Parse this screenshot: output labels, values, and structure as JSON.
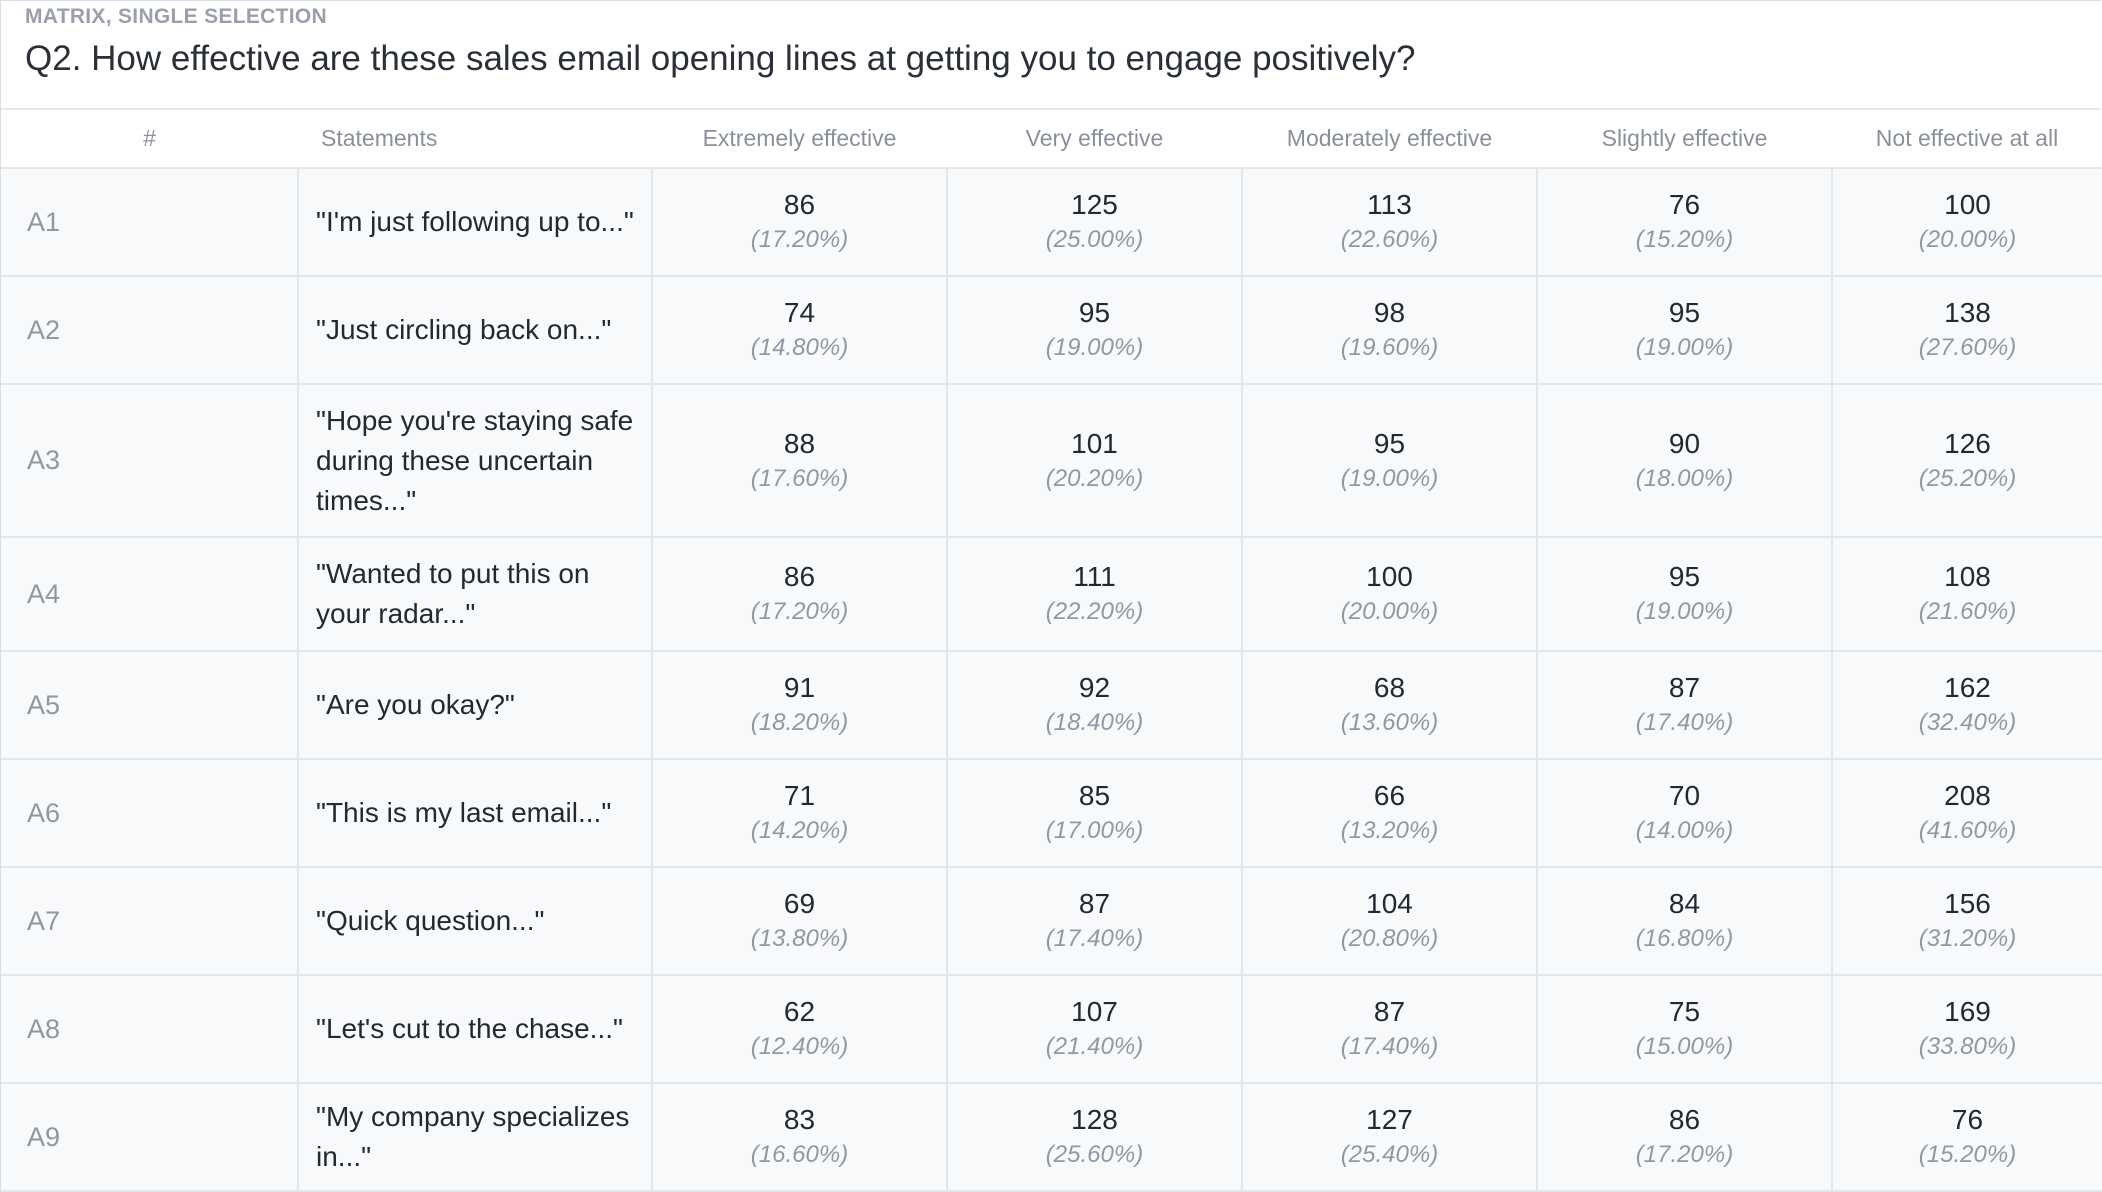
{
  "question": {
    "type_label": "MATRIX, SINGLE SELECTION",
    "title": "Q2. How effective are these sales email opening lines at getting you to engage positively?"
  },
  "table": {
    "columns": [
      "#",
      "Statements",
      "Extremely effective",
      "Very effective",
      "Moderately effective",
      "Slightly effective",
      "Not effective at all"
    ],
    "rows": [
      {
        "id": "A1",
        "statement": "\"I'm just following up to...\"",
        "cells": [
          {
            "count": "86",
            "pct": "(17.20%)"
          },
          {
            "count": "125",
            "pct": "(25.00%)"
          },
          {
            "count": "113",
            "pct": "(22.60%)"
          },
          {
            "count": "76",
            "pct": "(15.20%)"
          },
          {
            "count": "100",
            "pct": "(20.00%)"
          }
        ]
      },
      {
        "id": "A2",
        "statement": "\"Just circling back on...\"",
        "cells": [
          {
            "count": "74",
            "pct": "(14.80%)"
          },
          {
            "count": "95",
            "pct": "(19.00%)"
          },
          {
            "count": "98",
            "pct": "(19.60%)"
          },
          {
            "count": "95",
            "pct": "(19.00%)"
          },
          {
            "count": "138",
            "pct": "(27.60%)"
          }
        ]
      },
      {
        "id": "A3",
        "statement": "\"Hope you're staying safe during these uncertain times...\"",
        "cells": [
          {
            "count": "88",
            "pct": "(17.60%)"
          },
          {
            "count": "101",
            "pct": "(20.20%)"
          },
          {
            "count": "95",
            "pct": "(19.00%)"
          },
          {
            "count": "90",
            "pct": "(18.00%)"
          },
          {
            "count": "126",
            "pct": "(25.20%)"
          }
        ]
      },
      {
        "id": "A4",
        "statement": "\"Wanted to put this on your radar...\"",
        "cells": [
          {
            "count": "86",
            "pct": "(17.20%)"
          },
          {
            "count": "111",
            "pct": "(22.20%)"
          },
          {
            "count": "100",
            "pct": "(20.00%)"
          },
          {
            "count": "95",
            "pct": "(19.00%)"
          },
          {
            "count": "108",
            "pct": "(21.60%)"
          }
        ]
      },
      {
        "id": "A5",
        "statement": "\"Are you okay?\"",
        "cells": [
          {
            "count": "91",
            "pct": "(18.20%)"
          },
          {
            "count": "92",
            "pct": "(18.40%)"
          },
          {
            "count": "68",
            "pct": "(13.60%)"
          },
          {
            "count": "87",
            "pct": "(17.40%)"
          },
          {
            "count": "162",
            "pct": "(32.40%)"
          }
        ]
      },
      {
        "id": "A6",
        "statement": "\"This is my last email...\"",
        "cells": [
          {
            "count": "71",
            "pct": "(14.20%)"
          },
          {
            "count": "85",
            "pct": "(17.00%)"
          },
          {
            "count": "66",
            "pct": "(13.20%)"
          },
          {
            "count": "70",
            "pct": "(14.00%)"
          },
          {
            "count": "208",
            "pct": "(41.60%)"
          }
        ]
      },
      {
        "id": "A7",
        "statement": "\"Quick question...\"",
        "cells": [
          {
            "count": "69",
            "pct": "(13.80%)"
          },
          {
            "count": "87",
            "pct": "(17.40%)"
          },
          {
            "count": "104",
            "pct": "(20.80%)"
          },
          {
            "count": "84",
            "pct": "(16.80%)"
          },
          {
            "count": "156",
            "pct": "(31.20%)"
          }
        ]
      },
      {
        "id": "A8",
        "statement": "\"Let's cut to the chase...\"",
        "cells": [
          {
            "count": "62",
            "pct": "(12.40%)"
          },
          {
            "count": "107",
            "pct": "(21.40%)"
          },
          {
            "count": "87",
            "pct": "(17.40%)"
          },
          {
            "count": "75",
            "pct": "(15.00%)"
          },
          {
            "count": "169",
            "pct": "(33.80%)"
          }
        ]
      },
      {
        "id": "A9",
        "statement": "\"My company specializes in...\"",
        "cells": [
          {
            "count": "83",
            "pct": "(16.60%)"
          },
          {
            "count": "128",
            "pct": "(25.60%)"
          },
          {
            "count": "127",
            "pct": "(25.40%)"
          },
          {
            "count": "86",
            "pct": "(17.20%)"
          },
          {
            "count": "76",
            "pct": "(15.20%)"
          }
        ]
      }
    ]
  }
}
